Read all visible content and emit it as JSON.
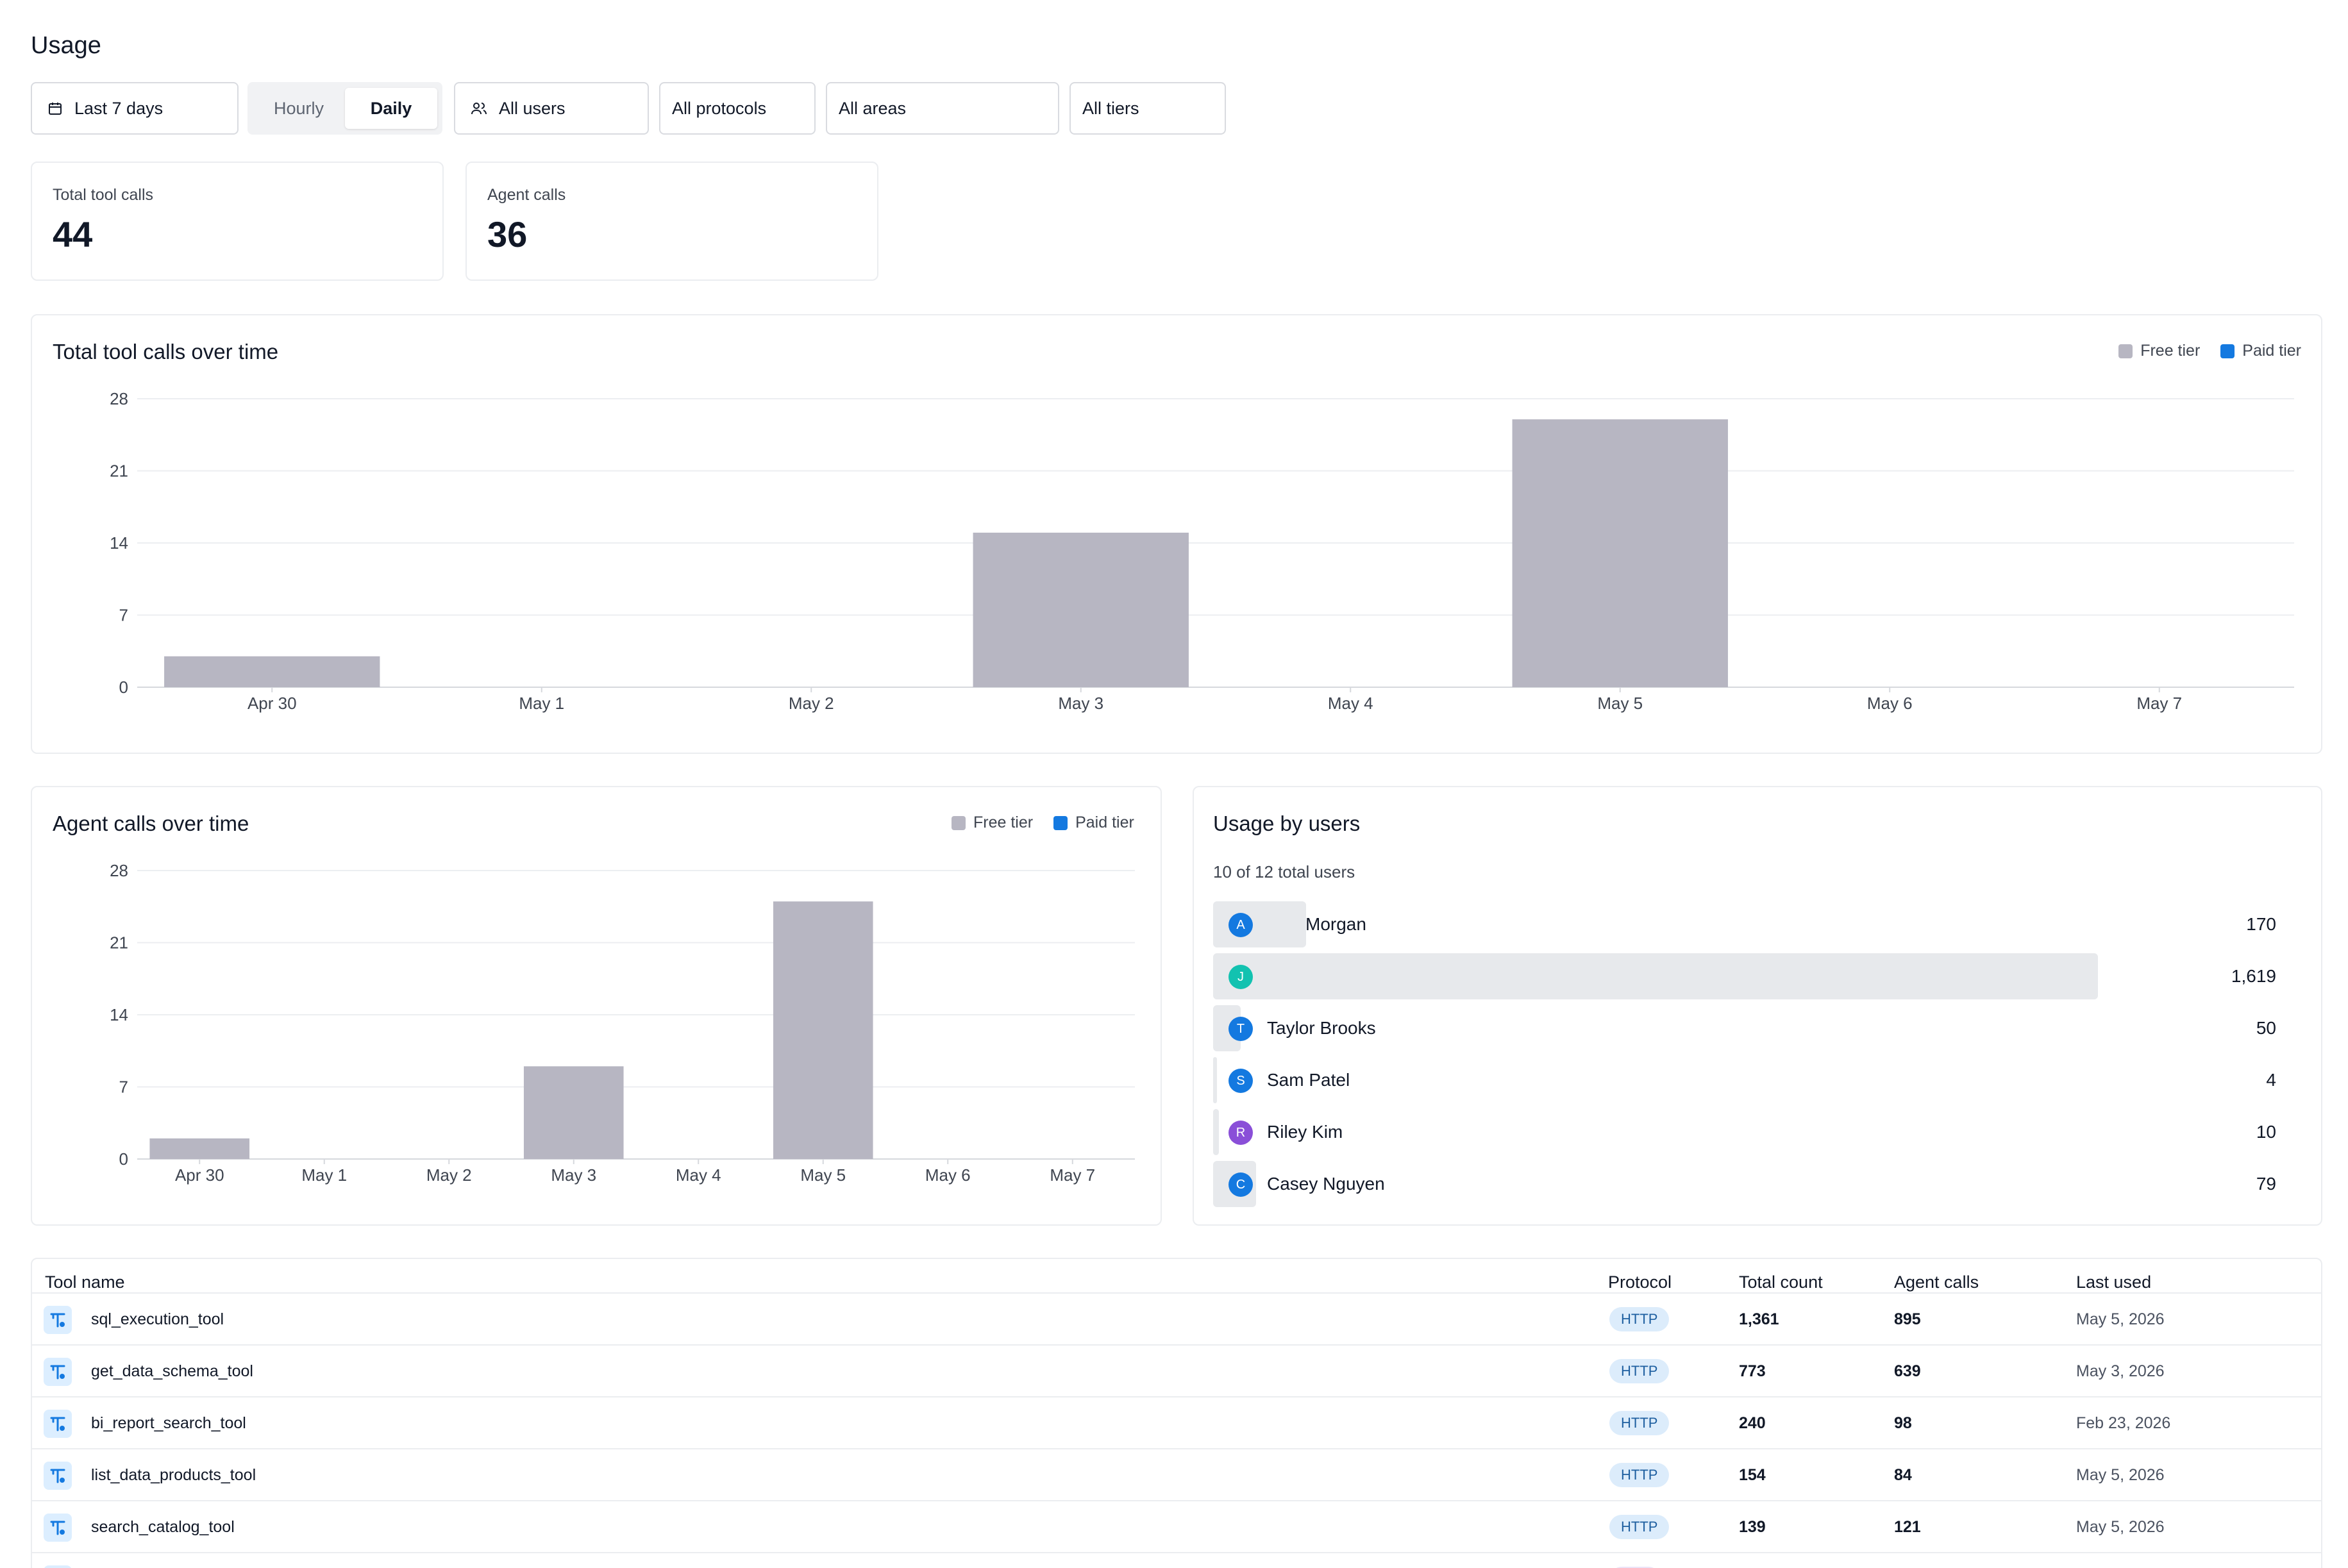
{
  "page": {
    "title": "Usage"
  },
  "filters": {
    "date_range": "Last 7 days",
    "granularity": {
      "options": [
        "Hourly",
        "Daily"
      ],
      "selected": "Daily"
    },
    "users": "All users",
    "protocols": "All protocols",
    "areas": "All areas",
    "tiers": "All tiers"
  },
  "stats": {
    "total_tool_calls": {
      "label": "Total tool calls",
      "value": "44"
    },
    "agent_calls": {
      "label": "Agent calls",
      "value": "36"
    }
  },
  "colors": {
    "free_tier": "#b7b6c2",
    "paid_tier": "#1479e0"
  },
  "legend": {
    "free": "Free tier",
    "paid": "Paid tier"
  },
  "chart_data": [
    {
      "type": "bar",
      "title": "Total tool calls over time",
      "categories": [
        "Apr 30",
        "May 1",
        "May 2",
        "May 3",
        "May 4",
        "May 5",
        "May 6",
        "May 7"
      ],
      "series": [
        {
          "name": "Free tier",
          "values": [
            3,
            0,
            0,
            15,
            0,
            26,
            0,
            0
          ]
        },
        {
          "name": "Paid tier",
          "values": [
            0,
            0,
            0,
            0,
            0,
            0,
            0,
            0
          ]
        }
      ],
      "ylim": [
        0,
        28
      ],
      "yticks": [
        0,
        7,
        14,
        21,
        28
      ],
      "grid": true,
      "legend": "top-right"
    },
    {
      "type": "bar",
      "title": "Agent calls over time",
      "categories": [
        "Apr 30",
        "May 1",
        "May 2",
        "May 3",
        "May 4",
        "May 5",
        "May 6",
        "May 7"
      ],
      "series": [
        {
          "name": "Free tier",
          "values": [
            2,
            0,
            0,
            9,
            0,
            25,
            0,
            0
          ]
        },
        {
          "name": "Paid tier",
          "values": [
            0,
            0,
            0,
            0,
            0,
            0,
            0,
            0
          ]
        }
      ],
      "ylim": [
        0,
        28
      ],
      "yticks": [
        0,
        7,
        14,
        21,
        28
      ],
      "grid": true,
      "legend": "top-right"
    }
  ],
  "usage_by_users": {
    "title": "Usage by users",
    "subtitle": "10 of 12 total users",
    "max": 1619,
    "users": [
      {
        "initial": "A",
        "name": "Morgan",
        "count": 170,
        "count_label": "170",
        "color": "#1479e0"
      },
      {
        "initial": "J",
        "name": "",
        "count": 1619,
        "count_label": "1,619",
        "color": "#12c2b0"
      },
      {
        "initial": "T",
        "name": "Taylor Brooks",
        "count": 50,
        "count_label": "50",
        "color": "#1479e0"
      },
      {
        "initial": "S",
        "name": "Sam Patel",
        "count": 4,
        "count_label": "4",
        "color": "#1479e0"
      },
      {
        "initial": "R",
        "name": "Riley Kim",
        "count": 10,
        "count_label": "10",
        "color": "#8a4fd8"
      },
      {
        "initial": "C",
        "name": "Casey Nguyen",
        "count": 79,
        "count_label": "79",
        "color": "#1479e0"
      }
    ]
  },
  "tools_table": {
    "columns": [
      "Tool name",
      "Protocol",
      "Total count",
      "Agent calls",
      "Last used"
    ],
    "rows": [
      {
        "name": "sql_execution_tool",
        "protocol": "HTTP",
        "total": "1,361",
        "agent": "895",
        "last_used": "May 5, 2026"
      },
      {
        "name": "get_data_schema_tool",
        "protocol": "HTTP",
        "total": "773",
        "agent": "639",
        "last_used": "May 3, 2026"
      },
      {
        "name": "bi_report_search_tool",
        "protocol": "HTTP",
        "total": "240",
        "agent": "98",
        "last_used": "Feb 23, 2026"
      },
      {
        "name": "list_data_products_tool",
        "protocol": "HTTP",
        "total": "154",
        "agent": "84",
        "last_used": "May 5, 2026"
      },
      {
        "name": "search_catalog_tool",
        "protocol": "HTTP",
        "total": "139",
        "agent": "121",
        "last_used": "May 5, 2026"
      }
    ]
  }
}
